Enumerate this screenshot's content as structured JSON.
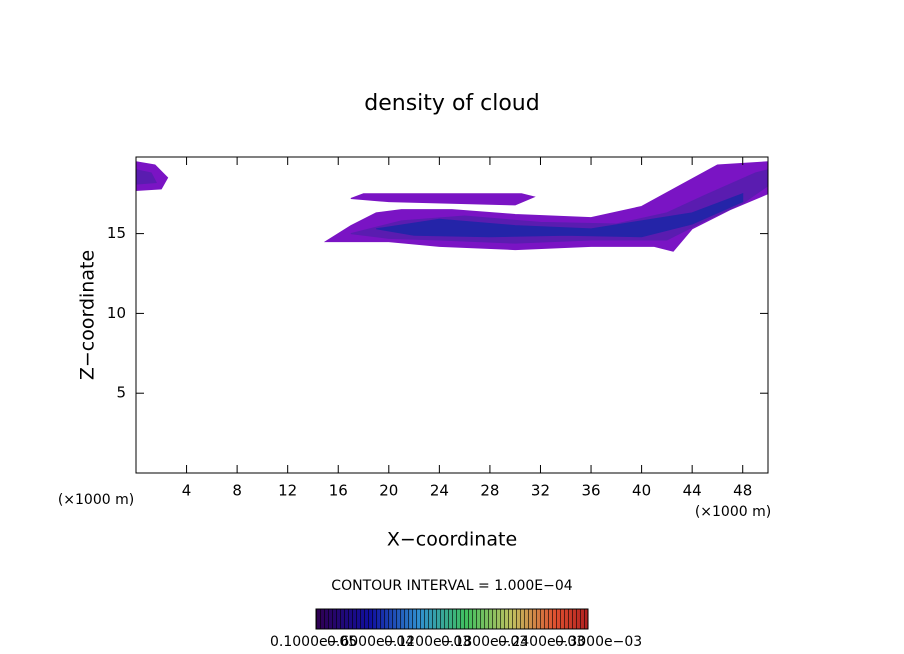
{
  "chart_data": {
    "type": "contour",
    "title": "density of cloud",
    "xlabel": "X−coordinate",
    "ylabel": "Z−coordinate",
    "x_unit_label": "(×1000 m)",
    "xlim": [
      0,
      50
    ],
    "ylim": [
      0,
      19.8
    ],
    "xticks": [
      4,
      8,
      12,
      16,
      20,
      24,
      28,
      32,
      36,
      40,
      44,
      48
    ],
    "yticks": [
      5,
      10,
      15
    ],
    "regions": [
      {
        "color": "#7a14c4",
        "x": [
          15,
          17,
          19,
          21,
          25,
          30,
          36,
          40,
          43,
          46,
          50,
          50,
          47,
          44,
          42.5,
          41,
          36,
          30,
          24,
          20,
          15
        ],
        "y": [
          14.5,
          15.5,
          16.3,
          16.5,
          16.5,
          16.2,
          16.0,
          16.7,
          18.0,
          19.3,
          19.5,
          17.5,
          16.5,
          15.3,
          13.9,
          14.2,
          14.2,
          14.0,
          14.2,
          14.5,
          14.5
        ]
      },
      {
        "color": "#7a14c4",
        "x": [
          17,
          18,
          30.5,
          31.5,
          30,
          20,
          17
        ],
        "y": [
          17.2,
          17.5,
          17.5,
          17.3,
          16.8,
          17.0,
          17.2
        ]
      },
      {
        "color": "#7a14c4",
        "x": [
          0,
          1.5,
          2.5,
          2,
          0
        ],
        "y": [
          19.5,
          19.3,
          18.5,
          17.8,
          17.7
        ]
      },
      {
        "color": "#5a1cb0",
        "x": [
          17,
          21,
          26,
          32,
          38,
          42,
          45,
          49,
          50,
          50,
          48,
          45,
          42,
          36,
          30,
          24,
          20,
          17
        ],
        "y": [
          15.0,
          15.8,
          16.1,
          15.7,
          15.6,
          16.3,
          17.4,
          18.8,
          19.0,
          18.0,
          16.9,
          15.8,
          14.6,
          14.6,
          14.4,
          14.6,
          14.7,
          15.0
        ]
      },
      {
        "color": "#2424a8",
        "x": [
          19,
          24,
          30,
          36,
          40,
          44,
          48,
          48,
          44,
          40,
          34,
          28,
          22,
          19
        ],
        "y": [
          15.3,
          15.9,
          15.5,
          15.3,
          15.8,
          16.3,
          17.5,
          17.0,
          15.6,
          14.8,
          14.9,
          14.8,
          14.9,
          15.3
        ]
      },
      {
        "color": "#5a1cb0",
        "x": [
          0,
          1.2,
          1.6,
          0
        ],
        "y": [
          19.0,
          18.8,
          18.2,
          18.1
        ]
      }
    ],
    "colorbar": {
      "title": "CONTOUR INTERVAL = 1.000E−04",
      "labels": [
        "0.1000e−05",
        "0.6000e−04",
        "0.1200e−03",
        "0.1800e−03",
        "0.2400e−03",
        "0.3000e−03"
      ]
    }
  }
}
